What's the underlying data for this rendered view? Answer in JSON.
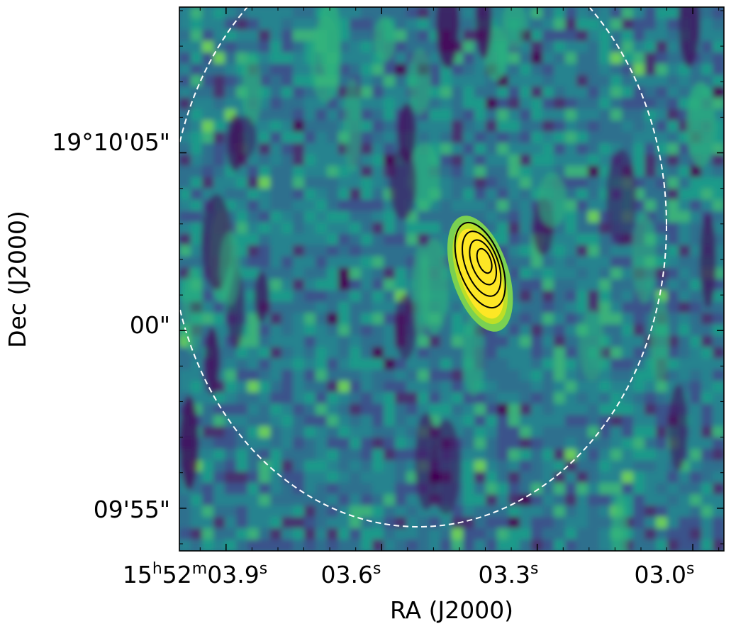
{
  "chart_data": {
    "type": "heatmap",
    "colormap": "viridis",
    "xlabel": "RA (J2000)",
    "ylabel": "Dec (J2000)",
    "x_ticks": [
      {
        "value": 3.9,
        "h": "15",
        "m": "52",
        "s": "03.9",
        "full": true
      },
      {
        "value": 3.6,
        "s": "03.6"
      },
      {
        "value": 3.3,
        "s": "03.3"
      },
      {
        "value": 3.0,
        "s": "03.0"
      }
    ],
    "y_ticks": [
      {
        "value": 5,
        "label": "19°10'05\""
      },
      {
        "value": 0,
        "label": "00\""
      },
      {
        "value": -5,
        "label": "09'55\""
      }
    ],
    "xlim_seconds": [
      3.99,
      2.94
    ],
    "ylim_arcsec_offset": [
      -6.2,
      9.1
    ],
    "source": {
      "ra_seconds": 3.41,
      "dec_offset": 1.6
    },
    "contour_levels": 4,
    "contour_color": "#000000",
    "beam_circle": {
      "style": "dashed",
      "color": "#ffffff"
    }
  }
}
